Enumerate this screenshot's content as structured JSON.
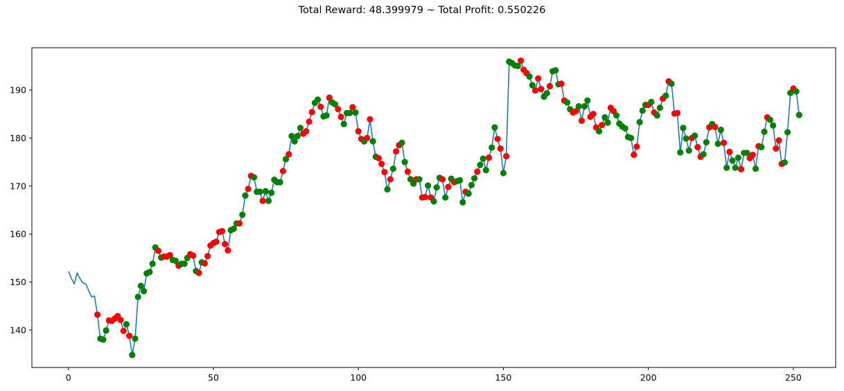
{
  "chart_data": {
    "type": "line",
    "title": "Total Reward: 48.399979 ~ Total Profit: 0.550226",
    "xlabel": "",
    "ylabel": "",
    "xlim": [
      -12.6,
      264.6
    ],
    "ylim": [
      132.2,
      198.8
    ],
    "grid": false,
    "xticks": [
      0,
      50,
      100,
      150,
      200,
      250
    ],
    "yticks": [
      140,
      150,
      160,
      170,
      180,
      190
    ],
    "colors": {
      "line": "#1f77b4",
      "short": "#ff0000",
      "long": "#008000"
    },
    "series": [
      {
        "values": [
          152.2,
          150.8,
          149.6,
          151.9,
          150.7,
          149.8,
          149.6,
          148.2,
          146.9,
          147.1,
          143.2,
          138.2,
          138.0,
          139.9,
          142.0,
          141.9,
          142.4,
          142.9,
          142.1,
          139.8,
          141.2,
          138.8,
          134.8,
          138.2,
          146.9,
          149.2,
          148.1,
          151.8,
          152.1,
          153.8,
          157.2,
          156.5,
          155.1,
          155.3,
          155.3,
          155.6,
          154.6,
          154.4,
          153.4,
          153.8,
          153.8,
          155.0,
          155.8,
          155.5,
          152.3,
          151.9,
          154.1,
          153.9,
          155.4,
          157.6,
          158.1,
          158.4,
          160.4,
          160.6,
          157.9,
          156.6,
          160.8,
          161.1,
          162.2,
          162.2,
          164.0,
          168.0,
          169.4,
          172.1,
          171.8,
          168.8,
          168.8,
          166.9,
          168.9,
          166.9,
          168.6,
          171.3,
          170.8,
          170.8,
          173.1,
          175.6,
          176.6,
          180.4,
          179.3,
          180.4,
          182.1,
          180.9,
          181.4,
          183.4,
          185.4,
          187.3,
          188.0,
          186.5,
          184.5,
          184.7,
          188.4,
          187.4,
          187.0,
          186.0,
          184.4,
          182.9,
          185.2,
          185.2,
          186.4,
          185.3,
          181.4,
          179.8,
          179.3,
          180.0,
          183.9,
          179.3,
          176.1,
          175.8,
          174.6,
          172.9,
          169.3,
          171.4,
          173.6,
          177.2,
          178.5,
          179.0,
          175.0,
          173.0,
          171.4,
          170.5,
          171.4,
          171.4,
          167.6,
          167.7,
          170.1,
          167.6,
          166.8,
          169.7,
          171.7,
          171.4,
          167.6,
          169.8,
          171.5,
          170.8,
          171.0,
          171.2,
          166.6,
          168.8,
          168.4,
          170.2,
          171.6,
          173.0,
          174.4,
          175.7,
          173.3,
          175.9,
          178.0,
          182.2,
          179.8,
          177.8,
          172.7,
          176.2,
          195.9,
          195.6,
          195.1,
          195.0,
          196.1,
          194.2,
          193.5,
          192.8,
          191.0,
          189.9,
          192.4,
          190.2,
          188.6,
          189.3,
          190.8,
          193.9,
          194.1,
          191.2,
          191.3,
          187.8,
          187.4,
          186.0,
          185.3,
          185.6,
          186.6,
          183.6,
          186.6,
          187.8,
          184.4,
          185.0,
          182.2,
          181.4,
          182.7,
          184.3,
          183.2,
          186.3,
          185.6,
          184.7,
          183.0,
          182.4,
          182.0,
          180.2,
          180.0,
          176.5,
          178.2,
          183.3,
          185.7,
          186.9,
          186.9,
          187.5,
          185.3,
          184.7,
          186.3,
          188.2,
          188.8,
          191.8,
          191.3,
          185.1,
          185.2,
          177.0,
          182.1,
          179.9,
          177.4,
          180.0,
          180.5,
          178.1,
          176.1,
          176.6,
          179.1,
          182.2,
          182.9,
          182.3,
          178.8,
          181.7,
          179.0,
          173.8,
          177.1,
          175.3,
          173.8,
          175.9,
          173.5,
          176.9,
          176.9,
          175.8,
          176.5,
          173.6,
          178.3,
          178.1,
          181.3,
          184.3,
          183.8,
          182.6,
          177.8,
          179.5,
          174.6,
          174.9,
          181.2,
          189.4,
          190.3,
          189.7,
          184.8
        ],
        "positions": [
          "",
          "",
          "",
          "",
          "",
          "",
          "",
          "",
          "",
          "",
          "short",
          "long",
          "long",
          "long",
          "short",
          "short",
          "short",
          "short",
          "short",
          "short",
          "long",
          "short",
          "long",
          "long",
          "long",
          "long",
          "long",
          "long",
          "long",
          "long",
          "long",
          "short",
          "long",
          "short",
          "short",
          "short",
          "long",
          "long",
          "short",
          "long",
          "long",
          "long",
          "short",
          "short",
          "long",
          "short",
          "long",
          "short",
          "short",
          "short",
          "short",
          "short",
          "short",
          "short",
          "short",
          "short",
          "long",
          "long",
          "long",
          "short",
          "long",
          "long",
          "short",
          "short",
          "long",
          "long",
          "long",
          "short",
          "long",
          "long",
          "long",
          "long",
          "long",
          "long",
          "short",
          "long",
          "short",
          "long",
          "long",
          "long",
          "long",
          "short",
          "short",
          "short",
          "short",
          "long",
          "long",
          "short",
          "long",
          "long",
          "short",
          "long",
          "long",
          "short",
          "short",
          "long",
          "long",
          "long",
          "short",
          "long",
          "short",
          "short",
          "long",
          "short",
          "short",
          "long",
          "long",
          "short",
          "short",
          "short",
          "long",
          "short",
          "long",
          "short",
          "short",
          "long",
          "long",
          "short",
          "long",
          "long",
          "short",
          "long",
          "short",
          "short",
          "long",
          "short",
          "long",
          "long",
          "long",
          "short",
          "long",
          "short",
          "long",
          "short",
          "long",
          "long",
          "long",
          "short",
          "long",
          "long",
          "long",
          "short",
          "long",
          "long",
          "long",
          "short",
          "long",
          "long",
          "short",
          "short",
          "long",
          "short",
          "long",
          "long",
          "long",
          "long",
          "short",
          "short",
          "short",
          "long",
          "long",
          "short",
          "short",
          "short",
          "long",
          "long",
          "short",
          "long",
          "long",
          "long",
          "short",
          "short",
          "long",
          "long",
          "short",
          "short",
          "long",
          "short",
          "long",
          "long",
          "short",
          "short",
          "short",
          "long",
          "short",
          "long",
          "long",
          "short",
          "short",
          "long",
          "long",
          "long",
          "long",
          "long",
          "long",
          "short",
          "short",
          "long",
          "long",
          "long",
          "short",
          "long",
          "short",
          "long",
          "long",
          "short",
          "long",
          "short",
          "long",
          "short",
          "short",
          "long",
          "long",
          "long",
          "long",
          "short",
          "long",
          "short",
          "short",
          "long",
          "long",
          "short",
          "long",
          "short",
          "long",
          "long",
          "short",
          "long",
          "short",
          "long",
          "long",
          "long",
          "short",
          "long",
          "long",
          "short",
          "short",
          "long",
          "short",
          "long",
          "long",
          "short",
          "long",
          "long",
          "short",
          "short",
          "short",
          "long",
          "long",
          "long",
          "short",
          "long",
          "long"
        ]
      }
    ]
  }
}
